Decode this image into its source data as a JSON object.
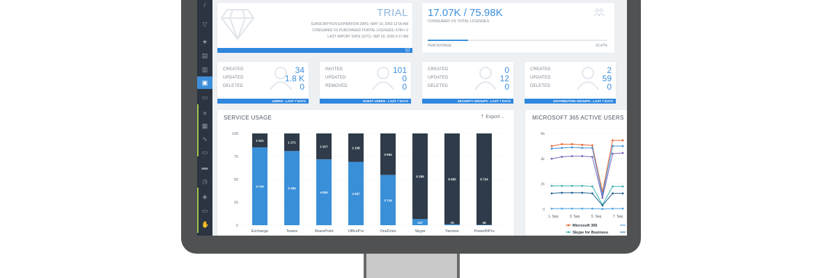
{
  "license": {
    "plan": "TRIAL",
    "rows": [
      {
        "label": "SUBSCRIPTION EXPIRATION DATE:",
        "value": "MAY 19, 2050 12:00 AM"
      },
      {
        "label": "CONSUMED VS PURCHASED PORTAL LICENSES:",
        "value": "6784 / 0"
      },
      {
        "label": "LAST IMPORT DATE (UTC):",
        "value": "SEP 29, 2020 4:17 AM"
      }
    ]
  },
  "licenses_consumed": {
    "value": "17.07K / 75.98K",
    "caption": "CONSUMED VS TOTAL LICENSES",
    "progress_label": "PERCENTAGE",
    "progress_value": "22.47%",
    "progress_fraction": 0.2247
  },
  "stat_cards": [
    {
      "footer": "USERS - LAST 7 DAYS",
      "rows": [
        {
          "label": "CREATED",
          "value": "34"
        },
        {
          "label": "UPDATED",
          "value": "1.8 K"
        },
        {
          "label": "DELETED",
          "value": "0"
        }
      ]
    },
    {
      "footer": "GUEST USERS - LAST 7 DAYS",
      "rows": [
        {
          "label": "INVITED",
          "value": "101"
        },
        {
          "label": "UPDATED",
          "value": "0"
        },
        {
          "label": "REMOVED",
          "value": "0"
        }
      ]
    },
    {
      "footer": "SECURITY GROUPS - LAST 7 DAYS",
      "rows": [
        {
          "label": "CREATED",
          "value": "0"
        },
        {
          "label": "UPDATED",
          "value": "12"
        },
        {
          "label": "DELETED",
          "value": "0"
        }
      ]
    },
    {
      "footer": "DISTRIBUTION GROUPS - LAST 7 DAYS",
      "rows": [
        {
          "label": "CREATED",
          "value": "2"
        },
        {
          "label": "UPDATED",
          "value": "59"
        },
        {
          "label": "DELETED",
          "value": "0"
        }
      ]
    }
  ],
  "service_usage": {
    "title": "SERVICE USAGE",
    "export_label": "Export",
    "colors": {
      "active": "#3a8fd9",
      "inactive": "#2f3b4a"
    }
  },
  "active_users": {
    "title": "MICROSOFT 365 ACTIVE USERS",
    "legend": [
      "Microsoft 365",
      "Skype for Business"
    ]
  },
  "chart_data": [
    {
      "type": "bar",
      "title": "SERVICE USAGE",
      "stacked": true,
      "percent": true,
      "categories": [
        "Exchange",
        "Teams",
        "SharePoint",
        "OfficePro",
        "OneDrive",
        "Skype",
        "Yammer",
        "PowerBIPro"
      ],
      "series": [
        {
          "values": [
            84.8,
            80.8,
            71.8,
            69.0,
            54.8,
            6.6,
            1.1,
            0.4
          ],
          "labels": [
            "5 729",
            "5 499",
            "4 854",
            "4 667",
            "3 716",
            "447",
            "75",
            "26"
          ]
        },
        {
          "values": [
            15.2,
            19.2,
            28.2,
            31.0,
            45.2,
            93.4,
            98.9,
            99.6
          ],
          "labels": [
            "1 021",
            "1 271",
            "1 917",
            "2 108",
            "3 054",
            "6 298",
            "6 695",
            "6 724"
          ]
        }
      ],
      "yticks": [
        0,
        25,
        50,
        75,
        100
      ],
      "ylim": [
        0,
        100
      ]
    },
    {
      "type": "line",
      "title": "MICROSOFT 365 ACTIVE USERS",
      "x": [
        "1. Sep",
        "",
        "",
        "",
        "",
        "",
        "7. Sep",
        ""
      ],
      "xticks": [
        "1. Sep",
        "3. Sep",
        "5. Sep",
        "7. Sep"
      ],
      "yticks": [
        "0",
        "2k",
        "4k",
        "6k"
      ],
      "ylim": [
        0,
        6000
      ],
      "series": [
        {
          "name": "Microsoft 365",
          "color": "#e8622c",
          "values": [
            5000,
            5150,
            5150,
            5100,
            5050,
            1400,
            5450,
            5450
          ]
        },
        {
          "name": "",
          "color": "#3a8fd9",
          "values": [
            4800,
            4850,
            4900,
            4850,
            4850,
            1100,
            5000,
            5000
          ]
        },
        {
          "name": "",
          "color": "#7c63b8",
          "values": [
            4000,
            4150,
            4200,
            4200,
            4150,
            900,
            4400,
            4450
          ]
        },
        {
          "name": "Skype for Business",
          "color": "#3ab0b3",
          "values": [
            1850,
            1850,
            1850,
            1850,
            1800,
            350,
            1800,
            1800
          ]
        },
        {
          "name": "",
          "color": "#1f5f8f",
          "values": [
            1250,
            1300,
            1300,
            1300,
            1250,
            300,
            1250,
            1250
          ]
        },
        {
          "name": "",
          "color": "#4ea5e8",
          "values": [
            50,
            50,
            50,
            50,
            50,
            20,
            50,
            50
          ]
        }
      ]
    }
  ]
}
